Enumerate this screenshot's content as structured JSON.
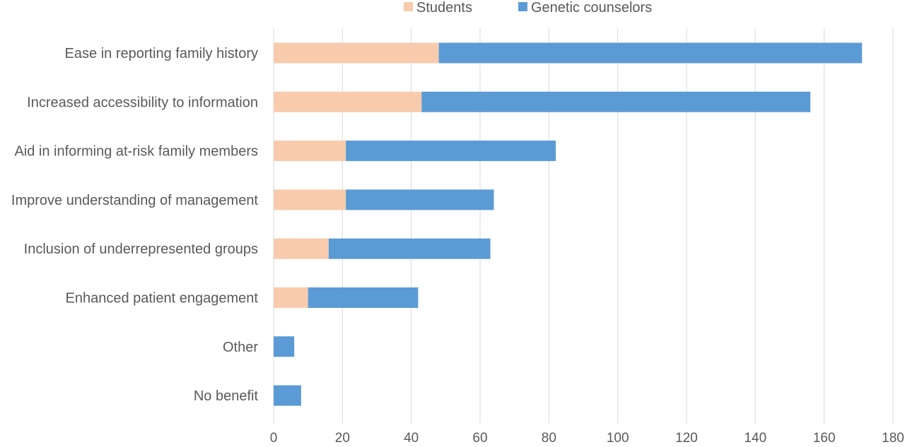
{
  "chart_data": {
    "type": "bar",
    "orientation": "horizontal",
    "stacked": true,
    "categories": [
      "Ease in reporting family history",
      "Increased accessibility to information",
      "Aid in informing at-risk family members",
      "Improve understanding of management",
      "Inclusion of underrepresented groups",
      "Enhanced patient engagement",
      "Other",
      "No benefit"
    ],
    "series": [
      {
        "name": "Students",
        "color": "#f8cbad",
        "values": [
          48,
          43,
          21,
          21,
          16,
          10,
          0,
          0
        ]
      },
      {
        "name": "Genetic counselors",
        "color": "#5b9bd5",
        "values": [
          123,
          113,
          61,
          43,
          47,
          32,
          6,
          8
        ]
      }
    ],
    "xlim": [
      0,
      180
    ],
    "xticks": [
      "0",
      "20",
      "40",
      "60",
      "80",
      "100",
      "120",
      "140",
      "160",
      "180"
    ],
    "grid": true,
    "legend_position": "top"
  }
}
